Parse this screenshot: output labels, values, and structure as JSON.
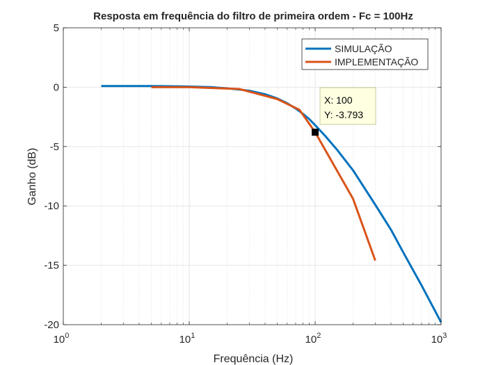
{
  "chart_data": {
    "type": "line",
    "title": "Resposta em frequência do filtro de primeira ordem - Fc = 100Hz",
    "xlabel": "Frequência (Hz)",
    "ylabel": "Ganho (dB)",
    "xscale": "log",
    "xlim": [
      1,
      1000
    ],
    "ylim": [
      -20,
      5
    ],
    "grid": true,
    "minor_grid": true,
    "legend_position": "top-right",
    "x_ticks": [
      1,
      10,
      100,
      1000
    ],
    "x_tick_labels": [
      {
        "base": "10",
        "exp": "0"
      },
      {
        "base": "10",
        "exp": "1"
      },
      {
        "base": "10",
        "exp": "2"
      },
      {
        "base": "10",
        "exp": "3"
      }
    ],
    "y_ticks": [
      5,
      0,
      -5,
      -10,
      -15,
      -20
    ],
    "y_tick_labels": [
      "5",
      "0",
      "-5",
      "-10",
      "-15",
      "-20"
    ],
    "series": [
      {
        "name": "SIMULAÇÃO",
        "color": "#0072BD",
        "x": [
          2,
          3,
          5,
          7,
          10,
          15,
          20,
          25,
          30,
          40,
          50,
          60,
          70,
          80,
          90,
          100,
          120,
          150,
          200,
          300,
          400,
          500,
          700,
          1000
        ],
        "y": [
          0.1,
          0.1,
          0.1,
          0.08,
          0.05,
          0.0,
          -0.1,
          -0.2,
          -0.3,
          -0.6,
          -0.95,
          -1.35,
          -1.8,
          -2.25,
          -2.7,
          -3.2,
          -4.1,
          -5.3,
          -7.0,
          -9.9,
          -12.0,
          -13.9,
          -16.7,
          -19.8
        ]
      },
      {
        "name": "IMPLEMENTAÇÃO",
        "color": "#D95319",
        "x": [
          5,
          10,
          25,
          50,
          75,
          100,
          200,
          300
        ],
        "y": [
          0.0,
          0.0,
          -0.15,
          -1.0,
          -1.9,
          -3.793,
          -9.4,
          -14.6
        ]
      }
    ],
    "datatip": {
      "x": 100,
      "y": -3.793,
      "x_text": "X: 100",
      "y_text": "Y: -3.793"
    }
  }
}
